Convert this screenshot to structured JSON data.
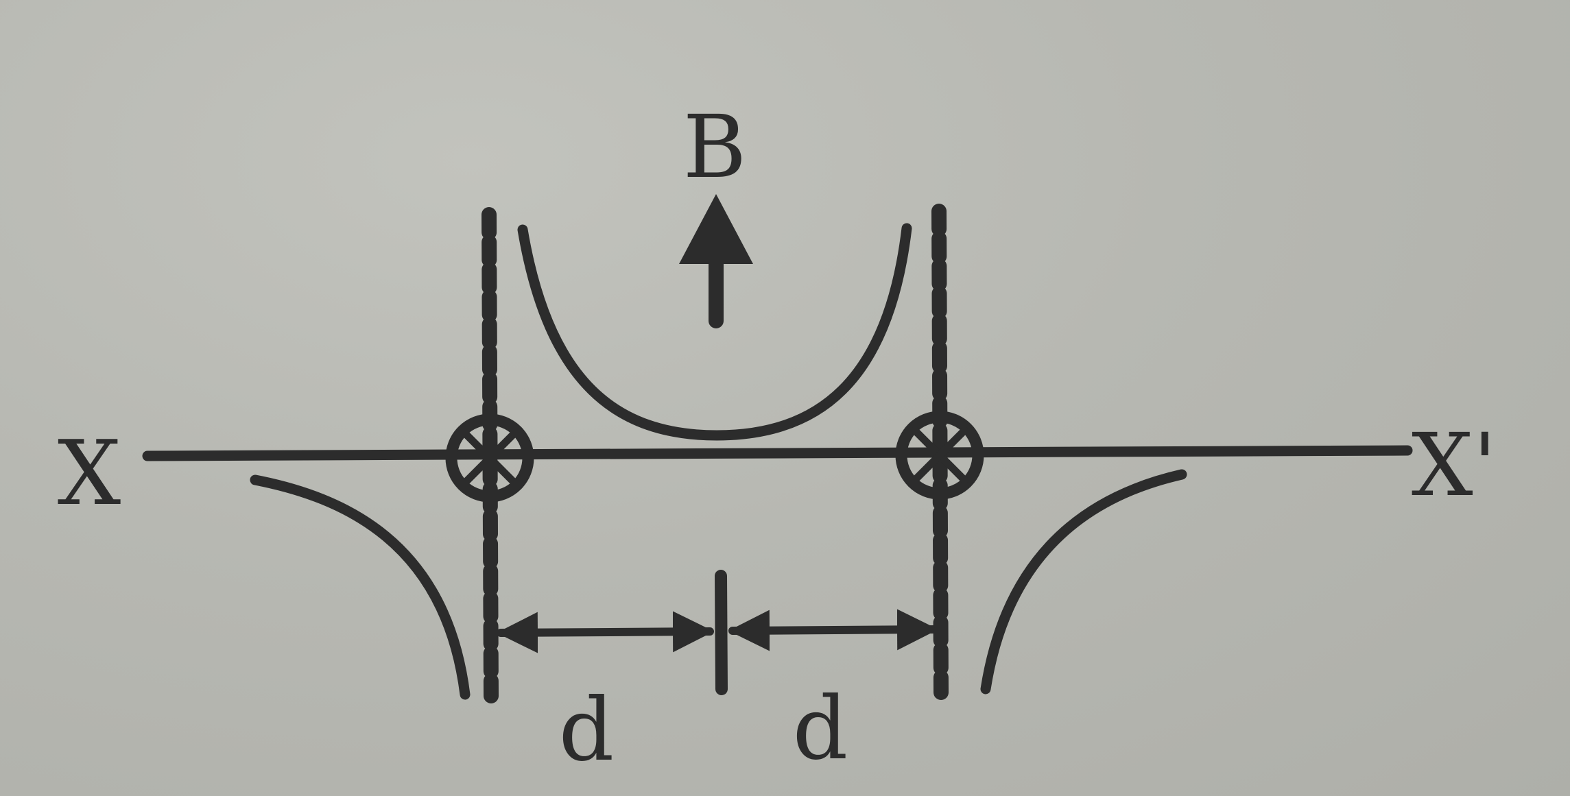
{
  "labels": {
    "field": "B",
    "axis_left": "X",
    "axis_right": "X'",
    "distance_left": "d",
    "distance_right": "d"
  },
  "colors": {
    "ink": "#2c2c2c",
    "paper": "#b9bab4"
  }
}
